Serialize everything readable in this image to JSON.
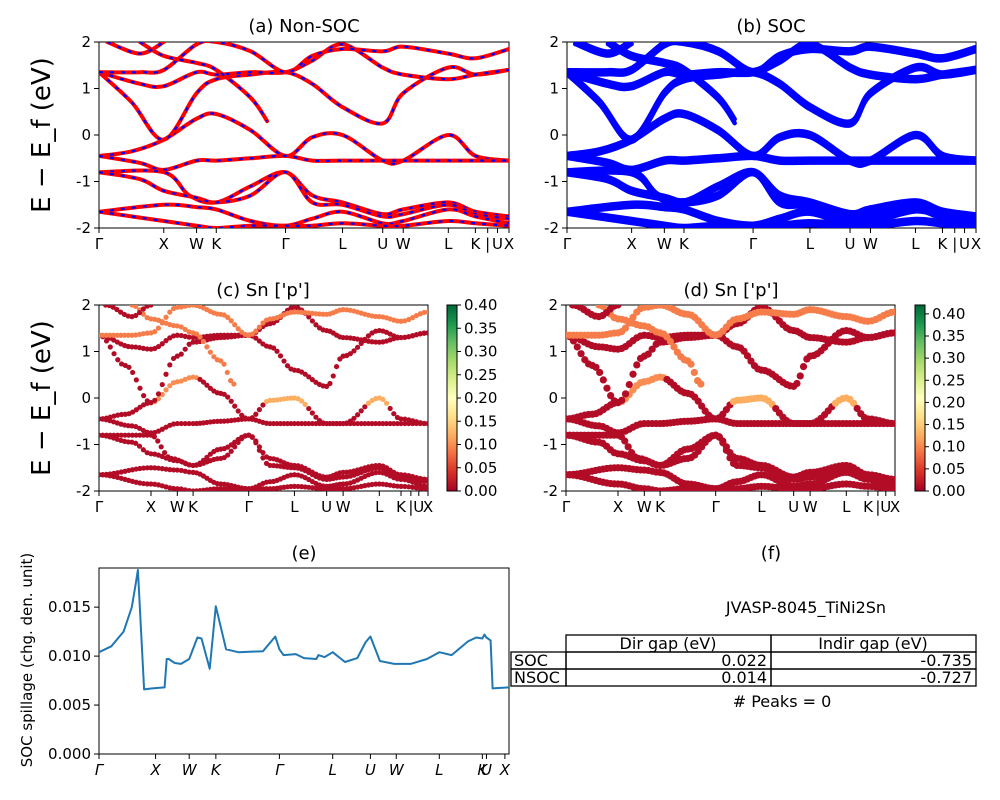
{
  "figure": {
    "ylabel": "E − E_f (eV)",
    "band_ticks_ab": [
      "Γ",
      "X",
      "W",
      "K",
      "Γ",
      "L",
      "U",
      "W",
      "L",
      "K",
      "|",
      "U",
      "X"
    ],
    "band_ticks_cd": [
      "Γ",
      "X",
      "W",
      "K",
      "Γ",
      "L",
      "U",
      "W",
      "L",
      "K",
      "|",
      "U",
      "X"
    ],
    "spill_ticks": [
      "Γ",
      "X",
      "W",
      "K",
      "Γ",
      "L",
      "U",
      "W",
      "L",
      "K",
      "U",
      "X"
    ]
  },
  "panels": {
    "a": {
      "title": "(a) Non-SOC"
    },
    "b": {
      "title": "(b) SOC"
    },
    "c": {
      "title": "(c)  Sn ['p']"
    },
    "d": {
      "title": "(d) Sn ['p']"
    },
    "e": {
      "title": "(e)",
      "ylabel": "SOC spillage (chg. den. unit)"
    },
    "f": {
      "title": "(f)"
    }
  },
  "colorbar_c": {
    "ticks": [
      "0.00",
      "0.05",
      "0.10",
      "0.15",
      "0.20",
      "0.25",
      "0.30",
      "0.35",
      "0.40"
    ],
    "max": 0.4
  },
  "colorbar_d": {
    "ticks": [
      "0.00",
      "0.05",
      "0.10",
      "0.15",
      "0.20",
      "0.25",
      "0.30",
      "0.35",
      "0.40"
    ],
    "max": 0.42
  },
  "info": {
    "material": "JVASP-8045_TiNi2Sn",
    "col_dir": "Dir gap (eV)",
    "col_indir": "Indir gap (eV)",
    "rows": [
      {
        "label": "SOC",
        "dir": "0.022",
        "indir": "-0.735"
      },
      {
        "label": "NSOC",
        "dir": "0.014",
        "indir": "-0.727"
      }
    ],
    "peaks": "# Peaks = 0"
  },
  "chart_data": [
    {
      "type": "line",
      "title": "(a) Non-SOC",
      "ylabel": "E − E_f (eV)",
      "ylim": [
        -2,
        2
      ],
      "xlim": [
        0,
        1
      ],
      "x_tick_labels": [
        "Γ",
        "X",
        "W",
        "K",
        "Γ",
        "L",
        "U",
        "W",
        "L",
        "K",
        "|",
        "U",
        "X"
      ],
      "x_tick_pos": [
        0,
        0.158,
        0.238,
        0.286,
        0.455,
        0.594,
        0.692,
        0.742,
        0.852,
        0.918,
        0.948,
        0.972,
        1.0
      ],
      "y_ticks": [
        -2,
        -1,
        0,
        1,
        2
      ],
      "colors": {
        "nsoc": "#ff0000",
        "soc_overlay": "#0000ff"
      },
      "series": [
        {
          "values": [
            [
              0,
              -0.45
            ],
            [
              0.08,
              -0.35
            ],
            [
              0.158,
              -0.1
            ],
            [
              0.238,
              0.35
            ],
            [
              0.286,
              0.45
            ],
            [
              0.37,
              0.1
            ],
            [
              0.455,
              -0.45
            ],
            [
              0.52,
              -0.05
            ],
            [
              0.594,
              0.0
            ],
            [
              0.692,
              -0.55
            ],
            [
              0.742,
              -0.55
            ],
            [
              0.852,
              0.0
            ],
            [
              0.918,
              -0.45
            ],
            [
              1.0,
              -0.55
            ]
          ]
        },
        {
          "values": [
            [
              0,
              -0.45
            ],
            [
              0.1,
              -0.6
            ],
            [
              0.158,
              -0.75
            ],
            [
              0.238,
              -0.55
            ],
            [
              0.286,
              -0.55
            ],
            [
              0.37,
              -0.5
            ],
            [
              0.455,
              -0.45
            ],
            [
              0.52,
              -0.55
            ],
            [
              0.594,
              -0.55
            ],
            [
              0.692,
              -0.55
            ],
            [
              0.742,
              -0.55
            ],
            [
              0.852,
              -0.55
            ],
            [
              0.918,
              -0.55
            ],
            [
              1.0,
              -0.55
            ]
          ]
        },
        {
          "values": [
            [
              0,
              -0.8
            ],
            [
              0.158,
              -0.8
            ],
            [
              0.22,
              -1.3
            ],
            [
              0.286,
              -1.45
            ],
            [
              0.37,
              -1.1
            ],
            [
              0.455,
              -0.8
            ],
            [
              0.52,
              -1.3
            ],
            [
              0.594,
              -1.45
            ],
            [
              0.692,
              -1.7
            ],
            [
              0.742,
              -1.6
            ],
            [
              0.852,
              -1.45
            ],
            [
              0.918,
              -1.65
            ],
            [
              1.0,
              -1.75
            ]
          ]
        },
        {
          "values": [
            [
              0,
              -0.8
            ],
            [
              0.1,
              -0.95
            ],
            [
              0.158,
              -1.2
            ],
            [
              0.238,
              -1.35
            ],
            [
              0.286,
              -1.45
            ],
            [
              0.37,
              -1.3
            ],
            [
              0.455,
              -0.8
            ],
            [
              0.52,
              -1.45
            ],
            [
              0.594,
              -1.5
            ],
            [
              0.692,
              -1.75
            ],
            [
              0.742,
              -1.7
            ],
            [
              0.852,
              -1.5
            ],
            [
              0.918,
              -1.7
            ],
            [
              1.0,
              -1.8
            ]
          ]
        },
        {
          "values": [
            [
              0,
              -1.65
            ],
            [
              0.158,
              -1.5
            ],
            [
              0.238,
              -1.55
            ],
            [
              0.286,
              -1.6
            ],
            [
              0.37,
              -1.85
            ],
            [
              0.455,
              -1.95
            ],
            [
              0.52,
              -1.8
            ],
            [
              0.594,
              -1.65
            ],
            [
              0.692,
              -1.9
            ],
            [
              0.742,
              -1.85
            ],
            [
              0.852,
              -1.6
            ],
            [
              0.918,
              -1.75
            ],
            [
              1.0,
              -1.9
            ]
          ]
        },
        {
          "values": [
            [
              0,
              -1.65
            ],
            [
              0.158,
              -1.85
            ],
            [
              0.238,
              -1.95
            ],
            [
              0.286,
              -2.0
            ],
            [
              0.37,
              -1.95
            ],
            [
              0.455,
              -1.95
            ],
            [
              0.52,
              -1.95
            ],
            [
              0.594,
              -1.9
            ],
            [
              0.692,
              -1.95
            ],
            [
              0.742,
              -1.95
            ],
            [
              0.852,
              -1.85
            ],
            [
              0.918,
              -1.9
            ],
            [
              1.0,
              -1.95
            ]
          ]
        },
        {
          "values": [
            [
              0,
              1.35
            ],
            [
              0.08,
              0.7
            ],
            [
              0.158,
              -0.1
            ],
            [
              0.238,
              0.9
            ],
            [
              0.286,
              1.2
            ],
            [
              0.37,
              1.3
            ],
            [
              0.455,
              1.35
            ],
            [
              0.52,
              1.1
            ],
            [
              0.594,
              0.6
            ],
            [
              0.692,
              0.25
            ],
            [
              0.742,
              0.9
            ],
            [
              0.852,
              1.45
            ],
            [
              0.918,
              1.3
            ],
            [
              1.0,
              1.4
            ]
          ]
        },
        {
          "values": [
            [
              0,
              1.35
            ],
            [
              0.1,
              1.1
            ],
            [
              0.158,
              1.05
            ],
            [
              0.238,
              1.35
            ],
            [
              0.286,
              1.3
            ],
            [
              0.37,
              1.35
            ],
            [
              0.455,
              1.35
            ],
            [
              0.52,
              1.6
            ],
            [
              0.594,
              1.95
            ],
            [
              0.692,
              1.45
            ],
            [
              0.742,
              1.3
            ],
            [
              0.852,
              1.2
            ],
            [
              0.918,
              1.3
            ],
            [
              1.0,
              1.4
            ]
          ]
        },
        {
          "values": [
            [
              0,
              1.35
            ],
            [
              0.1,
              1.35
            ],
            [
              0.158,
              1.4
            ],
            [
              0.238,
              1.95
            ],
            [
              0.286,
              2.0
            ],
            [
              0.37,
              1.8
            ],
            [
              0.455,
              1.35
            ],
            [
              0.52,
              1.7
            ],
            [
              0.594,
              1.85
            ],
            [
              0.692,
              1.8
            ],
            [
              0.742,
              1.9
            ],
            [
              0.852,
              1.75
            ],
            [
              0.918,
              1.65
            ],
            [
              1.0,
              1.85
            ]
          ]
        },
        {
          "values": [
            [
              0.1,
              2.0
            ],
            [
              0.158,
              1.7
            ],
            [
              0.238,
              1.55
            ],
            [
              0.286,
              1.4
            ],
            [
              0.37,
              0.8
            ],
            [
              0.41,
              0.3
            ]
          ]
        },
        {
          "values": [
            [
              0.02,
              2.0
            ],
            [
              0.1,
              1.75
            ],
            [
              0.158,
              2.0
            ]
          ]
        }
      ]
    },
    {
      "type": "line",
      "title": "(b) SOC",
      "ylim": [
        -2,
        2
      ],
      "xlim": [
        0,
        1
      ],
      "x_tick_labels": [
        "Γ",
        "X",
        "W",
        "K",
        "Γ",
        "L",
        "U",
        "W",
        "L",
        "K",
        "|",
        "U",
        "X"
      ],
      "y_ticks": [
        -2,
        -1,
        0,
        1,
        2
      ],
      "colors": {
        "soc": "#0000ff"
      },
      "note_same_bands_as": "a"
    },
    {
      "type": "scatter",
      "title": "(c)  Sn ['p']",
      "ylabel": "E − E_f (eV)",
      "ylim": [
        -2,
        2
      ],
      "x_tick_labels": [
        "Γ",
        "X",
        "W",
        "K",
        "Γ",
        "L",
        "U",
        "W",
        "L",
        "K",
        "|",
        "U",
        "X"
      ],
      "colorbar": {
        "min": 0.0,
        "max": 0.4,
        "cmap": "RdYlGn"
      },
      "note_points_follow_bands_of": "a"
    },
    {
      "type": "scatter",
      "title": "(d) Sn ['p']",
      "ylim": [
        -2,
        2
      ],
      "x_tick_labels": [
        "Γ",
        "X",
        "W",
        "K",
        "Γ",
        "L",
        "U",
        "W",
        "L",
        "K",
        "|",
        "U",
        "X"
      ],
      "colorbar": {
        "min": 0.0,
        "max": 0.42,
        "cmap": "RdYlGn"
      },
      "note_points_follow_bands_of": "a"
    },
    {
      "type": "line",
      "title": "(e)",
      "ylabel": "SOC spillage (chg. den. unit)",
      "ylim": [
        0,
        0.019
      ],
      "y_ticks": [
        0.0,
        0.005,
        0.01,
        0.015
      ],
      "x_tick_labels": [
        "Γ",
        "X",
        "W",
        "K",
        "Γ",
        "L",
        "U",
        "W",
        "L",
        "K",
        "U",
        "X"
      ],
      "x_tick_pos": [
        0,
        0.138,
        0.22,
        0.285,
        0.44,
        0.57,
        0.662,
        0.725,
        0.83,
        0.935,
        0.945,
        0.99
      ],
      "colors": {
        "line": "#1f77b4"
      },
      "x": [
        0,
        0.03,
        0.06,
        0.08,
        0.09,
        0.095,
        0.11,
        0.13,
        0.16,
        0.165,
        0.17,
        0.185,
        0.2,
        0.22,
        0.24,
        0.25,
        0.27,
        0.285,
        0.31,
        0.34,
        0.4,
        0.43,
        0.44,
        0.45,
        0.48,
        0.5,
        0.53,
        0.535,
        0.55,
        0.57,
        0.6,
        0.63,
        0.65,
        0.662,
        0.685,
        0.72,
        0.76,
        0.8,
        0.83,
        0.86,
        0.9,
        0.92,
        0.935,
        0.94,
        0.945,
        0.955,
        0.96,
        1.0
      ],
      "y": [
        0.0104,
        0.011,
        0.0125,
        0.015,
        0.0175,
        0.0188,
        0.0066,
        0.0067,
        0.0068,
        0.0097,
        0.0097,
        0.0093,
        0.0092,
        0.0097,
        0.0119,
        0.0118,
        0.0087,
        0.0151,
        0.0107,
        0.0104,
        0.0105,
        0.012,
        0.0107,
        0.0101,
        0.0102,
        0.0098,
        0.0097,
        0.0101,
        0.0099,
        0.0104,
        0.0094,
        0.0098,
        0.0114,
        0.012,
        0.0095,
        0.0092,
        0.0092,
        0.0097,
        0.0104,
        0.0101,
        0.0115,
        0.0119,
        0.0118,
        0.0122,
        0.0119,
        0.0116,
        0.0067,
        0.0068
      ]
    }
  ]
}
